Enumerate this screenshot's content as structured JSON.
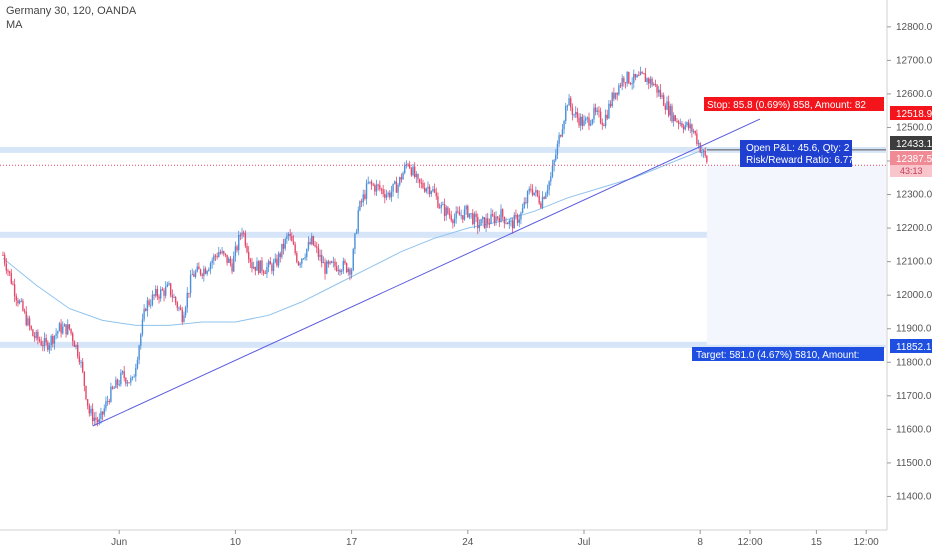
{
  "header": {
    "symbol_line": "Germany 30, 120, OANDA",
    "indicator_label": "MA"
  },
  "colors": {
    "up": "#4a90d9",
    "down": "#e5476a",
    "ma": "#8fc3ef",
    "trendline": "#5b5be0",
    "zones": "#cfe1f7",
    "stop": "#f4151c",
    "target": "#1e4fe0",
    "pnl_box": "#1f3fd0",
    "last_price": "#f08a95"
  },
  "chart_data": {
    "type": "candlestick",
    "title": "Germany 30, 120, OANDA",
    "ylim": [
      11300,
      12880
    ],
    "y_ticks": [
      11400,
      11500,
      11600,
      11700,
      11800,
      11900,
      12000,
      12100,
      12200,
      12300,
      12400,
      12500,
      12600,
      12700,
      12800
    ],
    "y_tick_labels": [
      "11400.0",
      "11500.0",
      "11600.0",
      "11700.0",
      "11800.0",
      "11900.0",
      "12000.0",
      "12100.0",
      "12200.0",
      "12300.0",
      "12400.0",
      "12500.0",
      "12600.0",
      "12700.0",
      "12800.0"
    ],
    "x_tick_labels": [
      "Jun",
      "10",
      "17",
      "24",
      "Jul",
      "8",
      "12:00",
      "15",
      "12:00"
    ],
    "x_tick_index": [
      70,
      140,
      210,
      280,
      350,
      420,
      450,
      490,
      520
    ],
    "price_path": [
      [
        0,
        12120
      ],
      [
        8,
        12000
      ],
      [
        18,
        11880
      ],
      [
        26,
        11850
      ],
      [
        34,
        11900
      ],
      [
        40,
        11900
      ],
      [
        46,
        11820
      ],
      [
        52,
        11650
      ],
      [
        58,
        11620
      ],
      [
        64,
        11700
      ],
      [
        72,
        11760
      ],
      [
        78,
        11740
      ],
      [
        86,
        11970
      ],
      [
        92,
        12000
      ],
      [
        100,
        12020
      ],
      [
        108,
        11940
      ],
      [
        114,
        12060
      ],
      [
        122,
        12080
      ],
      [
        130,
        12130
      ],
      [
        138,
        12090
      ],
      [
        144,
        12200
      ],
      [
        150,
        12090
      ],
      [
        158,
        12080
      ],
      [
        164,
        12090
      ],
      [
        172,
        12180
      ],
      [
        178,
        12100
      ],
      [
        186,
        12160
      ],
      [
        194,
        12080
      ],
      [
        202,
        12090
      ],
      [
        210,
        12080
      ],
      [
        214,
        12250
      ],
      [
        220,
        12330
      ],
      [
        226,
        12320
      ],
      [
        232,
        12300
      ],
      [
        238,
        12330
      ],
      [
        244,
        12400
      ],
      [
        250,
        12330
      ],
      [
        258,
        12320
      ],
      [
        264,
        12260
      ],
      [
        272,
        12230
      ],
      [
        280,
        12250
      ],
      [
        286,
        12210
      ],
      [
        292,
        12220
      ],
      [
        300,
        12240
      ],
      [
        306,
        12210
      ],
      [
        312,
        12240
      ],
      [
        318,
        12320
      ],
      [
        324,
        12280
      ],
      [
        330,
        12350
      ],
      [
        336,
        12490
      ],
      [
        340,
        12580
      ],
      [
        344,
        12540
      ],
      [
        350,
        12510
      ],
      [
        356,
        12540
      ],
      [
        362,
        12520
      ],
      [
        368,
        12600
      ],
      [
        374,
        12650
      ],
      [
        380,
        12640
      ],
      [
        386,
        12650
      ],
      [
        392,
        12630
      ],
      [
        398,
        12580
      ],
      [
        404,
        12530
      ],
      [
        410,
        12510
      ],
      [
        416,
        12490
      ],
      [
        420,
        12440
      ],
      [
        424,
        12400
      ]
    ],
    "moving_average": [
      [
        0,
        12110
      ],
      [
        20,
        12030
      ],
      [
        40,
        11960
      ],
      [
        60,
        11925
      ],
      [
        80,
        11910
      ],
      [
        100,
        11910
      ],
      [
        120,
        11920
      ],
      [
        140,
        11920
      ],
      [
        160,
        11940
      ],
      [
        180,
        11980
      ],
      [
        200,
        12030
      ],
      [
        220,
        12080
      ],
      [
        240,
        12130
      ],
      [
        260,
        12170
      ],
      [
        280,
        12200
      ],
      [
        300,
        12220
      ],
      [
        320,
        12250
      ],
      [
        340,
        12290
      ],
      [
        360,
        12320
      ],
      [
        380,
        12350
      ],
      [
        400,
        12390
      ],
      [
        420,
        12430
      ],
      [
        424,
        12440
      ]
    ],
    "trendline": {
      "from": [
        54,
        11610
      ],
      "to": [
        456,
        12525
      ]
    },
    "horizontal_levels": [
      12433.1,
      12387.5,
      11852.1
    ],
    "support_zones": [
      12433.1,
      12180,
      11852.1
    ],
    "last_index": 424
  },
  "price_tags": {
    "stop": "12518.9",
    "entry": "12433.1",
    "last": "12387.5",
    "countdown": "43:13",
    "target": "11852.1"
  },
  "position": {
    "stop_label": "Stop: 85.8 (0.69%) 858, Amount: 82",
    "pnl_label": "Open P&L: 45.6, Qty: 2",
    "rr_label": "Risk/Reward Ratio: 6.77",
    "target_label": "Target: 581.0 (4.67%) 5810, Amount:"
  }
}
